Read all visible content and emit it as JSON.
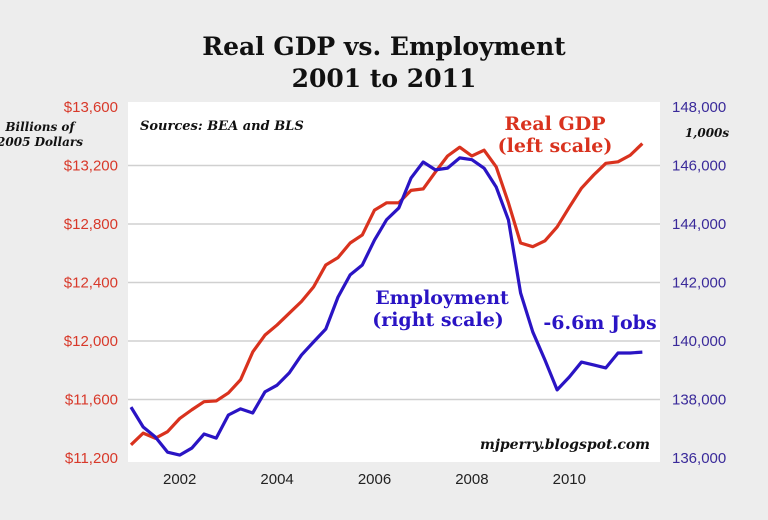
{
  "chart_data": {
    "type": "line",
    "title": "Real GDP vs. Employment",
    "subtitle": "2001 to 2011",
    "left_axis": {
      "unit_label": "Billions of 2005 Dollars",
      "range": [
        11200,
        13600
      ],
      "ticks": [
        "$11,200",
        "$11,600",
        "$12,000",
        "$12,400",
        "$12,800",
        "$13,200",
        "$13,600"
      ],
      "tick_values": [
        11200,
        11600,
        12000,
        12400,
        12800,
        13200,
        13600
      ]
    },
    "right_axis": {
      "unit_label": "1,000s",
      "range": [
        136000,
        148000
      ],
      "ticks": [
        "136,000",
        "138,000",
        "140,000",
        "142,000",
        "144,000",
        "146,000",
        "148,000"
      ],
      "tick_values": [
        136000,
        138000,
        140000,
        142000,
        144000,
        146000,
        148000
      ]
    },
    "x_axis": {
      "range": [
        2001,
        2011.9
      ],
      "ticks": [
        "2002",
        "2004",
        "2006",
        "2008",
        "2010"
      ],
      "tick_values": [
        2002,
        2004,
        2006,
        2008,
        2010
      ]
    },
    "grid": "horizontal",
    "source_note": "Sources: BEA and BLS",
    "watermark": "mjperry.blogspot.com",
    "annotations": {
      "gdp_label_1": "Real GDP",
      "gdp_label_2": "(left scale)",
      "emp_label_1": "Employment",
      "emp_label_2": "(right scale)",
      "jobs_loss": "-6.6m Jobs"
    },
    "x_start": 2001.0,
    "x_step": 0.25,
    "series": [
      {
        "name": "Real GDP",
        "axis": "left",
        "color": "#d9321e",
        "values": [
          11290,
          11370,
          11335,
          11380,
          11470,
          11530,
          11585,
          11590,
          11645,
          11735,
          11925,
          12040,
          12110,
          12190,
          12270,
          12370,
          12520,
          12570,
          12670,
          12725,
          12895,
          12945,
          12945,
          13030,
          13040,
          13155,
          13265,
          13325,
          13265,
          13305,
          13190,
          12945,
          12670,
          12645,
          12685,
          12780,
          12915,
          13045,
          13135,
          13215,
          13225,
          13270,
          13350
        ]
      },
      {
        "name": "Employment",
        "axis": "right",
        "color": "#2a14c4",
        "values": [
          137740,
          137060,
          136720,
          136200,
          136100,
          136340,
          136820,
          136680,
          137470,
          137680,
          137540,
          138260,
          138490,
          138910,
          139520,
          139970,
          140410,
          141500,
          142260,
          142600,
          143450,
          144150,
          144550,
          145570,
          146120,
          145850,
          145910,
          146260,
          146200,
          145910,
          145260,
          144140,
          141640,
          140310,
          139350,
          138330,
          138770,
          139280,
          139180,
          139080,
          139590,
          139590,
          139620
        ]
      }
    ]
  }
}
